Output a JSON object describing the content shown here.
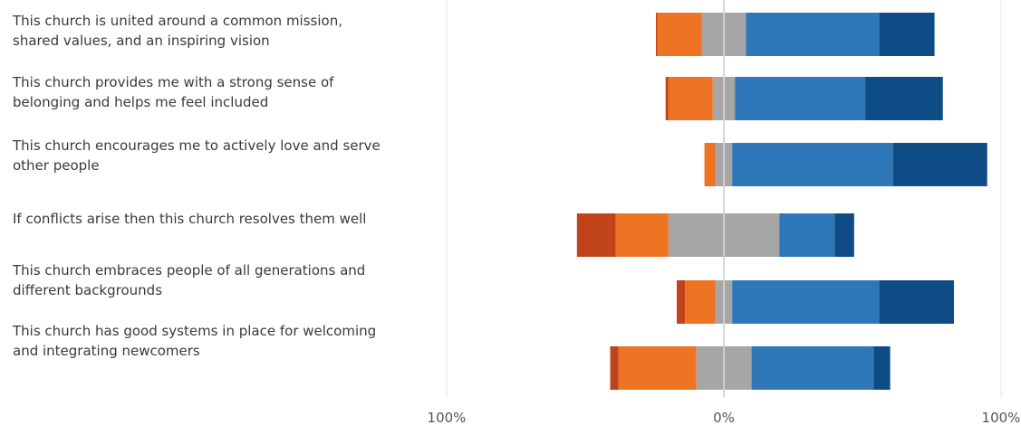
{
  "chart_data": {
    "type": "bar",
    "orientation": "horizontal",
    "stacked": true,
    "diverging": true,
    "categories": [
      "This church is united around a common mission,\nshared values, and an inspiring vision",
      "This church provides me with a strong sense of\nbelonging and helps me feel included",
      "This church encourages me to actively love and serve\nother people",
      "If conflicts arise then this church resolves them well",
      "This church embraces people of all generations and\ndifferent backgrounds",
      "This church has good systems in place for welcoming\nand integrating newcomers"
    ],
    "series": [
      {
        "color": "#c0431a",
        "values": [
          -0.5,
          -1,
          0,
          -14,
          -3,
          -3
        ]
      },
      {
        "color": "#ee7424",
        "values": [
          -16,
          -16,
          -4,
          -19,
          -11,
          -28
        ]
      },
      {
        "color": "#a6a6a6",
        "values": [
          -8,
          -4,
          -3,
          -20,
          -3,
          -10
        ]
      },
      {
        "color": "#a6a6a6",
        "values": [
          8,
          4,
          3,
          20,
          3,
          10
        ]
      },
      {
        "color": "#2e78b9",
        "values": [
          48,
          47,
          58,
          20,
          53,
          44
        ]
      },
      {
        "color": "#0f4c85",
        "values": [
          20,
          28,
          34,
          7,
          27,
          6
        ]
      }
    ],
    "xlim": [
      -100,
      100
    ],
    "xticks": [
      -100,
      0,
      100
    ],
    "xtick_labels": [
      "100%",
      "0%",
      "100%"
    ],
    "grid": true,
    "legend": "none"
  }
}
